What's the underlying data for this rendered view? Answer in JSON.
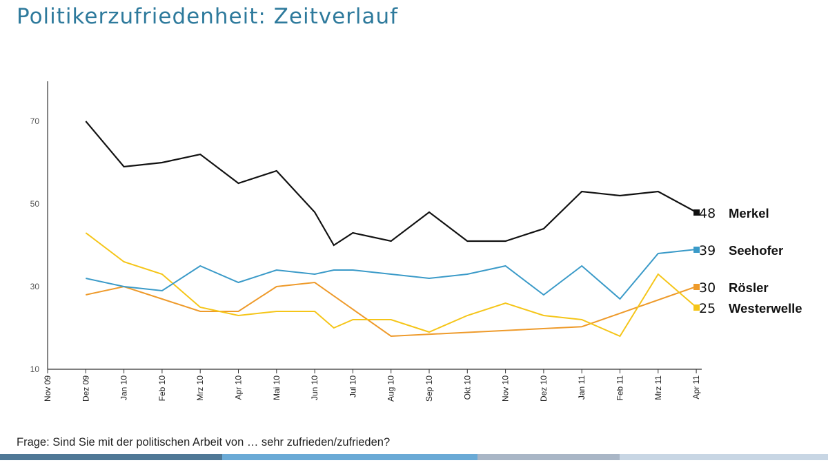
{
  "title": "Politikerzufriedenheit: Zeitverlauf",
  "question": "Frage: Sind Sie mit der politischen Arbeit von … sehr zufrieden/zufrieden?",
  "colors": {
    "title": "#2e7a9c",
    "bar": [
      "#4f7896",
      "#6aaad6",
      "#a9b6c6",
      "#c8d6e4"
    ]
  },
  "chart_data": {
    "type": "line",
    "title": "Politikerzufriedenheit: Zeitverlauf",
    "xlabel": "",
    "ylabel": "",
    "ylim": [
      10,
      80
    ],
    "yticks": [
      10,
      30,
      50,
      70
    ],
    "categories": [
      "Nov 09",
      "Dez 09",
      "Jan 10",
      "Feb 10",
      "Mrz 10",
      "Apr 10",
      "Mai 10",
      "Jun 10",
      "Jul 10",
      "Aug 10",
      "Sep 10",
      "Okt 10",
      "Nov 10",
      "Dez 10",
      "Jan 11",
      "Feb 11",
      "Mrz 11",
      "Apr 11"
    ],
    "series": [
      {
        "name": "Merkel",
        "color": "#111111",
        "final_value": "48",
        "points": [
          [
            1,
            70
          ],
          [
            2,
            59
          ],
          [
            3,
            60
          ],
          [
            4,
            62
          ],
          [
            5,
            55
          ],
          [
            6,
            58
          ],
          [
            7,
            48
          ],
          [
            7.5,
            40
          ],
          [
            8,
            43
          ],
          [
            9,
            41
          ],
          [
            10,
            48
          ],
          [
            11,
            41
          ],
          [
            12,
            41
          ],
          [
            13,
            44
          ],
          [
            14,
            53
          ],
          [
            15,
            52
          ],
          [
            16,
            53
          ],
          [
            17,
            48
          ]
        ]
      },
      {
        "name": "Seehofer",
        "color": "#3a9ac8",
        "final_value": "39",
        "points": [
          [
            1,
            32
          ],
          [
            2,
            30
          ],
          [
            3,
            29
          ],
          [
            4,
            35
          ],
          [
            5,
            31
          ],
          [
            6,
            34
          ],
          [
            7,
            33
          ],
          [
            7.5,
            34
          ],
          [
            8,
            34
          ],
          [
            9,
            33
          ],
          [
            10,
            32
          ],
          [
            11,
            33
          ],
          [
            12,
            35
          ],
          [
            13,
            28
          ],
          [
            14,
            35
          ],
          [
            15,
            27
          ],
          [
            16,
            38
          ],
          [
            17,
            39
          ]
        ]
      },
      {
        "name": "Rösler",
        "color": "#ee9a2a",
        "final_value": "30",
        "points": [
          [
            1,
            28
          ],
          [
            2,
            30
          ],
          [
            3,
            27
          ],
          [
            4,
            24
          ],
          [
            5,
            24
          ],
          [
            6,
            30
          ],
          [
            7,
            31
          ],
          [
            9,
            18
          ],
          [
            14,
            20.3
          ],
          [
            17,
            30
          ]
        ]
      },
      {
        "name": "Westerwelle",
        "color": "#f5c518",
        "final_value": "25",
        "points": [
          [
            1,
            43
          ],
          [
            2,
            36
          ],
          [
            3,
            33
          ],
          [
            4,
            25
          ],
          [
            5,
            23
          ],
          [
            6,
            24
          ],
          [
            7,
            24
          ],
          [
            7.5,
            20
          ],
          [
            8,
            22
          ],
          [
            9,
            22
          ],
          [
            10,
            19
          ],
          [
            11,
            23
          ],
          [
            12,
            26
          ],
          [
            13,
            23
          ],
          [
            14,
            22
          ],
          [
            15,
            18
          ],
          [
            16,
            33
          ],
          [
            17,
            25
          ]
        ]
      }
    ]
  }
}
